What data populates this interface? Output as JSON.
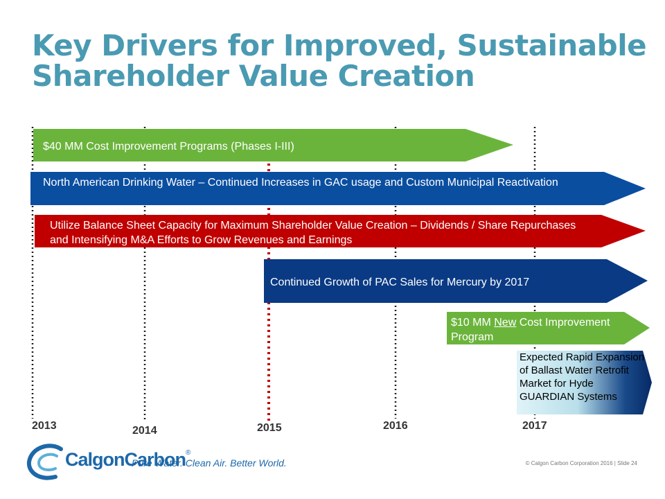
{
  "title": {
    "line1": "Key Drivers for Improved, Sustainable",
    "line2": "Shareholder Value Creation"
  },
  "colors": {
    "title": "#4a9ab2",
    "green": "#6bb43c",
    "blue": "#0a4ea0",
    "red": "#c00000",
    "navy": "#0a3a84"
  },
  "bars": {
    "cost_program": "$40 MM Cost Improvement Programs (Phases I-III)",
    "drinking_water": "North American Drinking Water – Continued Increases in GAC usage and Custom Municipal Reactivation",
    "balance_sheet": "Utilize Balance Sheet Capacity for Maximum Shareholder Value Creation – Dividends / Share Repurchases and Intensifying M&A Efforts to Grow Revenues and Earnings",
    "pac_sales": "Continued Growth of PAC Sales for Mercury by 2017",
    "new_program": {
      "amount": "$10 MM ",
      "new": "New",
      "rest": " Cost Improvement Program"
    },
    "ballast": "Expected Rapid Expansion of Ballast Water Retrofit Market for Hyde GUARDIAN Systems"
  },
  "years": [
    "2013",
    "2014",
    "2015",
    "2016",
    "2017"
  ],
  "logo": {
    "brand": "CalgonCarbon",
    "reg": "®",
    "tagline": "Pure Water. Clean Air. Better World."
  },
  "footer": "© Calgon Carbon Corporation 2016 | Slide 24"
}
